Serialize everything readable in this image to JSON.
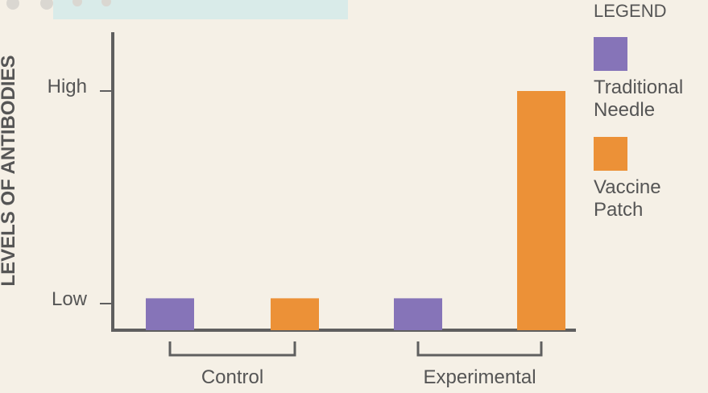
{
  "chart_data": {
    "type": "bar",
    "title": "",
    "ylabel": "LEVELS OF ANTIBODIES",
    "xlabel": "",
    "ylim": [
      0,
      1
    ],
    "y_tick_labels": [
      {
        "label": "High",
        "value": 0.9
      },
      {
        "label": "Low",
        "value": 0.1
      }
    ],
    "groups": [
      {
        "name": "Control",
        "values": [
          0.12,
          0.12
        ]
      },
      {
        "name": "Experimental",
        "values": [
          0.12,
          0.9
        ]
      }
    ],
    "series": [
      {
        "name": "Traditional Needle",
        "color": "#8674b8",
        "values": [
          0.12,
          0.12
        ]
      },
      {
        "name": "Vaccine Patch",
        "color": "#ec9137",
        "values": [
          0.12,
          0.9
        ]
      }
    ],
    "legend": {
      "title": "LEGEND",
      "placement": "right",
      "entries": [
        {
          "lines": [
            "Traditional",
            "Needle"
          ],
          "color": "#8674b8"
        },
        {
          "lines": [
            "Vaccine",
            "Patch"
          ],
          "color": "#ec9137"
        }
      ]
    },
    "grid": false
  },
  "colors": {
    "background": "#f5f0e6",
    "axis": "#5f5f5f",
    "text": "#555555",
    "top_strip": "#d9ebe9",
    "top_circles": "#dad7d1"
  }
}
